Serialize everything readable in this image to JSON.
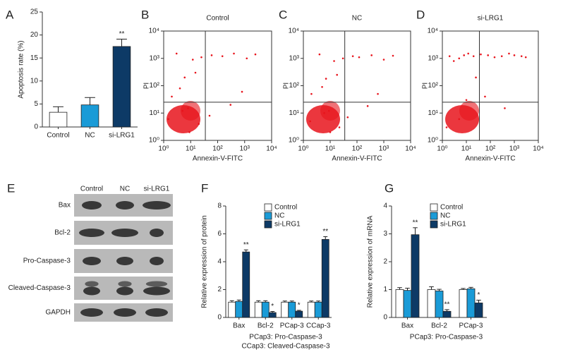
{
  "chart_data": [
    {
      "type": "bar",
      "panel": "A",
      "ylabel": "Apoptosis rate (%)",
      "categories": [
        "Control",
        "NC",
        "si-LRG1"
      ],
      "values": [
        3.2,
        4.8,
        17.5
      ],
      "errors": [
        1.2,
        1.6,
        1.6
      ],
      "colors": [
        "#ffffff",
        "#1a9bd7",
        "#0d3a66"
      ],
      "annotations": [
        null,
        null,
        "**"
      ],
      "ylim": [
        0,
        25
      ],
      "yticks": [
        0,
        5,
        10,
        15,
        20,
        25
      ]
    },
    {
      "type": "scatter",
      "panel": "B",
      "title": "Control",
      "xlabel": "Annexin-V-FITC",
      "ylabel": "PI",
      "color": "#e8141c",
      "xlog": true,
      "ylog": true,
      "xlim": [
        1,
        10000
      ],
      "ylim": [
        1,
        10000
      ],
      "gate": [
        35,
        25
      ],
      "xticks": [
        {
          "value": 1,
          "label": "10⁰"
        },
        {
          "value": 10,
          "label": "10¹"
        },
        {
          "value": 100,
          "label": "10²"
        },
        {
          "value": 1000,
          "label": "10³"
        },
        {
          "value": 10000,
          "label": "10⁴"
        }
      ],
      "yticks": [
        {
          "value": 1,
          "label": "10⁰"
        },
        {
          "value": 10,
          "label": "10¹"
        },
        {
          "value": 100,
          "label": "10²"
        },
        {
          "value": 1000,
          "label": "10³"
        },
        {
          "value": 10000,
          "label": "10⁴"
        }
      ],
      "x": [
        2,
        4,
        8,
        15,
        3,
        6,
        12,
        25,
        60,
        150,
        400,
        1200,
        2500,
        800,
        300,
        50,
        20,
        5,
        9,
        1.5
      ],
      "y": [
        40,
        80,
        15,
        300,
        1500,
        200,
        900,
        1100,
        1300,
        1200,
        1500,
        1000,
        1400,
        60,
        20,
        8,
        4,
        12,
        2,
        6
      ]
    },
    {
      "type": "scatter",
      "panel": "C",
      "title": "NC",
      "xlabel": "Annexin-V-FITC",
      "ylabel": "PI",
      "color": "#e8141c",
      "xlog": true,
      "ylog": true,
      "xlim": [
        1,
        10000
      ],
      "ylim": [
        1,
        10000
      ],
      "gate": [
        35,
        25
      ],
      "xticks": [
        {
          "value": 1,
          "label": "10⁰"
        },
        {
          "value": 10,
          "label": "10¹"
        },
        {
          "value": 100,
          "label": "10²"
        },
        {
          "value": 1000,
          "label": "10³"
        },
        {
          "value": 10000,
          "label": "10⁴"
        }
      ],
      "yticks": [
        {
          "value": 1,
          "label": "10⁰"
        },
        {
          "value": 10,
          "label": "10¹"
        },
        {
          "value": 100,
          "label": "10²"
        },
        {
          "value": 1000,
          "label": "10³"
        },
        {
          "value": 10000,
          "label": "10⁴"
        }
      ],
      "x": [
        2,
        5,
        9,
        18,
        4,
        7,
        14,
        30,
        70,
        120,
        350,
        1000,
        2200,
        600,
        250,
        45,
        22,
        6,
        10,
        1.8
      ],
      "y": [
        50,
        90,
        12,
        250,
        1400,
        180,
        800,
        1000,
        1200,
        1100,
        1300,
        900,
        1250,
        50,
        18,
        7,
        3,
        10,
        2,
        5
      ]
    },
    {
      "type": "scatter",
      "panel": "D",
      "title": "si-LRG1",
      "xlabel": "Annexin-V-FITC",
      "ylabel": "PI",
      "color": "#e8141c",
      "xlog": true,
      "ylog": true,
      "xlim": [
        1,
        10000
      ],
      "ylim": [
        1,
        10000
      ],
      "gate": [
        35,
        25
      ],
      "xticks": [
        {
          "value": 1,
          "label": "10⁰"
        },
        {
          "value": 10,
          "label": "10¹"
        },
        {
          "value": 100,
          "label": "10²"
        },
        {
          "value": 1000,
          "label": "10³"
        },
        {
          "value": 10000,
          "label": "10⁴"
        }
      ],
      "yticks": [
        {
          "value": 1,
          "label": "10⁰"
        },
        {
          "value": 10,
          "label": "10¹"
        },
        {
          "value": 100,
          "label": "10²"
        },
        {
          "value": 1000,
          "label": "10³"
        },
        {
          "value": 10000,
          "label": "10⁴"
        }
      ],
      "x": [
        2,
        3,
        5,
        8,
        12,
        20,
        40,
        80,
        150,
        300,
        600,
        1000,
        2000,
        3000,
        10,
        25,
        60,
        5,
        1.5,
        400
      ],
      "y": [
        1200,
        800,
        1000,
        1300,
        1500,
        1200,
        1400,
        1300,
        1100,
        1200,
        1500,
        1300,
        1200,
        1100,
        30,
        200,
        40,
        6,
        3,
        15
      ]
    },
    {
      "type": "bar",
      "panel": "F",
      "ylabel": "Relative expression of protein",
      "categories": [
        "Bax",
        "Bcl-2",
        "PCap-3",
        "CCap-3"
      ],
      "series": [
        {
          "name": "Control",
          "color": "#ffffff",
          "values": [
            1.1,
            1.1,
            1.1,
            1.1
          ],
          "errors": [
            0.1,
            0.1,
            0.08,
            0.08
          ]
        },
        {
          "name": "NC",
          "color": "#1a9bd7",
          "values": [
            1.15,
            1.1,
            1.1,
            1.1
          ],
          "errors": [
            0.1,
            0.1,
            0.08,
            0.08
          ]
        },
        {
          "name": "si-LRG1",
          "color": "#0d3a66",
          "values": [
            4.7,
            0.35,
            0.45,
            5.6
          ],
          "errors": [
            0.15,
            0.08,
            0.06,
            0.2
          ],
          "annotations": [
            "**",
            "*",
            "*",
            "**"
          ]
        }
      ],
      "ylim": [
        0,
        8
      ],
      "yticks": [
        0,
        2,
        4,
        6,
        8
      ],
      "legend": "top-left",
      "notes": [
        "PCap3: Pro-Caspase-3",
        "CCap3: Cleaved-Caspase-3"
      ]
    },
    {
      "type": "bar",
      "panel": "G",
      "ylabel": "Relative expression of mRNA",
      "categories": [
        "Bax",
        "Bcl-2",
        "PCap-3"
      ],
      "series": [
        {
          "name": "Control",
          "color": "#ffffff",
          "values": [
            1.0,
            1.0,
            1.0
          ],
          "errors": [
            0.07,
            0.1,
            0.04
          ]
        },
        {
          "name": "NC",
          "color": "#1a9bd7",
          "values": [
            0.97,
            0.95,
            1.03
          ],
          "errors": [
            0.08,
            0.06,
            0.05
          ]
        },
        {
          "name": "si-LRG1",
          "color": "#0d3a66",
          "values": [
            2.97,
            0.22,
            0.52
          ],
          "errors": [
            0.25,
            0.06,
            0.1
          ],
          "annotations": [
            "**",
            "**",
            "*"
          ]
        }
      ],
      "ylim": [
        0,
        4
      ],
      "yticks": [
        0,
        1,
        2,
        3,
        4
      ],
      "legend": "top-left",
      "notes": [
        "PCap3: Pro-Caspase-3"
      ]
    }
  ],
  "blot": {
    "panel": "E",
    "lanes": [
      "Control",
      "NC",
      "si-LRG1"
    ],
    "rows": [
      "Bax",
      "Bcl-2",
      "Pro-Caspase-3",
      "Cleaved-Caspase-3",
      "GAPDH"
    ]
  }
}
